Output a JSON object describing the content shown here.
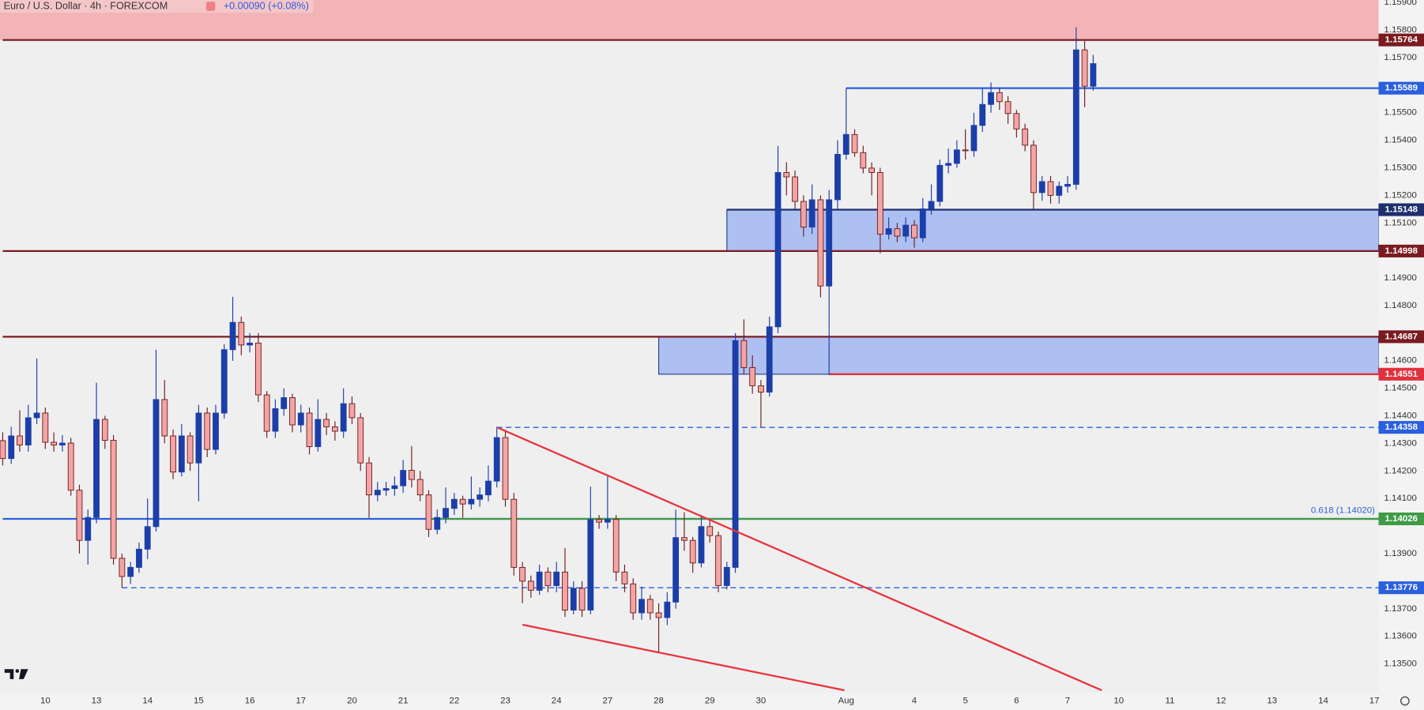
{
  "chart_data": {
    "type": "candlestick",
    "title": "Euro / U.S. Dollar · 4h · FOREXCOM",
    "subtitle": "+0.00090 (+0.08%)",
    "up_color": "#1c3ea8",
    "down_color": "#f3a5a5",
    "down_border": "#6e1c1c",
    "open": [
      1.1431,
      1.14245,
      1.14327,
      1.14294,
      1.14393,
      1.1441,
      1.14304,
      1.14294,
      1.14301,
      1.1413,
      1.13948,
      1.14031,
      1.14387,
      1.14311,
      1.13883,
      1.13817,
      1.1385,
      1.13916,
      1.13998,
      1.14459,
      1.14327,
      1.14196,
      1.14327,
      1.14229,
      1.1441,
      1.14278,
      1.1441,
      1.1464,
      1.14739,
      1.14657,
      1.14664,
      1.14476,
      1.14344,
      1.14426,
      1.14466,
      1.14367,
      1.1441,
      1.14288,
      1.14387,
      1.1436,
      1.14344,
      1.14444,
      1.14393,
      1.14229,
      1.14113,
      1.1413,
      1.14136,
      1.14146,
      1.14202,
      1.14169,
      1.14113,
      1.13988,
      1.14031,
      1.14064,
      1.14097,
      1.1408,
      1.14097,
      1.14113,
      1.14163,
      1.14321,
      1.14097,
      1.1385,
      1.138,
      1.13767,
      1.13833,
      1.13784,
      1.13833,
      1.13695,
      1.13774,
      1.13695,
      1.14024,
      1.14014,
      1.14024,
      1.13833,
      1.1379,
      1.13685,
      1.13734,
      1.13685,
      1.13668,
      1.13724,
      1.13958,
      1.13948,
      1.13866,
      1.13998,
      1.13965,
      1.13784,
      1.1385,
      1.14673,
      1.14575,
      1.14509,
      1.14486,
      1.14723,
      1.15283,
      1.15267,
      1.15178,
      1.15085,
      1.15184,
      1.14871,
      1.15184,
      1.15349,
      1.15421,
      1.15355,
      1.15299,
      1.15283,
      1.15059,
      1.15079,
      1.15052,
      1.15092,
      1.15046,
      1.15151,
      1.15178,
      1.15309,
      1.15316,
      1.15365,
      1.15362,
      1.15454,
      1.1553,
      1.15573,
      1.1554,
      1.15497,
      1.15441,
      1.15382,
      1.1521,
      1.1525,
      1.152,
      1.15233,
      1.1524,
      1.15728,
      1.15596
    ],
    "high": [
      1.1434,
      1.1436,
      1.1442,
      1.1444,
      1.14608,
      1.1443,
      1.1434,
      1.1433,
      1.1432,
      1.1415,
      1.1406,
      1.1452,
      1.144,
      1.1433,
      1.139,
      1.1387,
      1.1394,
      1.141,
      1.1464,
      1.1453,
      1.1435,
      1.1437,
      1.1434,
      1.1444,
      1.1443,
      1.1444,
      1.1466,
      1.14832,
      1.1476,
      1.147,
      1.147,
      1.1449,
      1.1446,
      1.145,
      1.1448,
      1.1444,
      1.1443,
      1.1446,
      1.1441,
      1.1438,
      1.145,
      1.1447,
      1.1441,
      1.1425,
      1.1416,
      1.1416,
      1.1418,
      1.1424,
      1.1429,
      1.142,
      1.1413,
      1.1406,
      1.1414,
      1.1412,
      1.1411,
      1.1418,
      1.1414,
      1.1422,
      1.1436,
      1.1435,
      1.1412,
      1.1387,
      1.1382,
      1.1386,
      1.1385,
      1.1387,
      1.1392,
      1.138,
      1.138,
      1.14143,
      1.1404,
      1.14186,
      1.1404,
      1.1386,
      1.1381,
      1.1378,
      1.1375,
      1.1372,
      1.1376,
      1.1406,
      1.1405,
      1.1396,
      1.1404,
      1.1402,
      1.1398,
      1.1387,
      1.147,
      1.1475,
      1.1462,
      1.1453,
      1.1476,
      1.1538,
      1.1532,
      1.1529,
      1.152,
      1.1524,
      1.152,
      1.1522,
      1.154,
      1.15589,
      1.1544,
      1.1538,
      1.1532,
      1.153,
      1.1512,
      1.151,
      1.1512,
      1.1511,
      1.1519,
      1.1524,
      1.1533,
      1.1537,
      1.154,
      1.1544,
      1.155,
      1.15589,
      1.1561,
      1.1559,
      1.1556,
      1.1551,
      1.1546,
      1.154,
      1.1527,
      1.1527,
      1.1525,
      1.1527,
      1.1581,
      1.1576,
      1.1571
    ],
    "low": [
      1.1422,
      1.14225,
      1.1427,
      1.1427,
      1.1437,
      1.1428,
      1.1427,
      1.1427,
      1.1411,
      1.139,
      1.1386,
      1.1401,
      1.1428,
      1.1386,
      1.13776,
      1.1379,
      1.1383,
      1.1388,
      1.1398,
      1.143,
      1.1417,
      1.1418,
      1.142,
      1.1409,
      1.1425,
      1.1426,
      1.1439,
      1.146,
      1.1462,
      1.1463,
      1.1445,
      1.1432,
      1.1432,
      1.144,
      1.1434,
      1.1434,
      1.1426,
      1.1427,
      1.1433,
      1.1431,
      1.1432,
      1.1437,
      1.142,
      1.1403,
      1.1409,
      1.1411,
      1.1411,
      1.1412,
      1.1414,
      1.1409,
      1.1396,
      1.1397,
      1.1401,
      1.1404,
      1.1403,
      1.1406,
      1.1407,
      1.1409,
      1.1414,
      1.1407,
      1.1382,
      1.1372,
      1.1374,
      1.1375,
      1.1376,
      1.1376,
      1.1367,
      1.1368,
      1.1367,
      1.1368,
      1.1399,
      1.1399,
      1.138,
      1.1376,
      1.1366,
      1.1366,
      1.1366,
      1.1354,
      1.1364,
      1.137,
      1.1391,
      1.1383,
      1.1385,
      1.1394,
      1.1376,
      1.1377,
      1.1383,
      1.1455,
      1.1448,
      1.14358,
      1.1447,
      1.147,
      1.152,
      1.1515,
      1.1505,
      1.1506,
      1.1483,
      1.14548,
      1.1515,
      1.1533,
      1.1534,
      1.1528,
      1.152,
      1.1499,
      1.1504,
      1.1503,
      1.1503,
      1.1501,
      1.1503,
      1.1513,
      1.1516,
      1.1528,
      1.153,
      1.1533,
      1.1534,
      1.1543,
      1.155,
      1.1551,
      1.1546,
      1.1541,
      1.1536,
      1.15148,
      1.1518,
      1.1517,
      1.1517,
      1.1521,
      1.1522,
      1.1552,
      1.1558
    ],
    "close": [
      1.14245,
      1.14327,
      1.14294,
      1.14393,
      1.1441,
      1.14304,
      1.14294,
      1.14301,
      1.1413,
      1.13948,
      1.14031,
      1.14387,
      1.14311,
      1.13883,
      1.13817,
      1.1385,
      1.13916,
      1.13998,
      1.14459,
      1.14327,
      1.14196,
      1.14327,
      1.14229,
      1.1441,
      1.14278,
      1.1441,
      1.1464,
      1.14739,
      1.14657,
      1.14664,
      1.14476,
      1.14344,
      1.14426,
      1.14466,
      1.14367,
      1.1441,
      1.14288,
      1.14387,
      1.1436,
      1.14344,
      1.14444,
      1.14393,
      1.14229,
      1.14113,
      1.1413,
      1.14136,
      1.14146,
      1.14202,
      1.14169,
      1.14113,
      1.13988,
      1.14031,
      1.14064,
      1.14097,
      1.1408,
      1.14097,
      1.14113,
      1.14163,
      1.14321,
      1.14097,
      1.1385,
      1.138,
      1.13767,
      1.13833,
      1.13784,
      1.13833,
      1.13695,
      1.13774,
      1.13695,
      1.14024,
      1.14014,
      1.14024,
      1.13833,
      1.1379,
      1.13685,
      1.13734,
      1.13685,
      1.13668,
      1.13724,
      1.13958,
      1.13948,
      1.13866,
      1.13998,
      1.13965,
      1.13784,
      1.1385,
      1.14673,
      1.14575,
      1.14509,
      1.14486,
      1.14723,
      1.15283,
      1.15267,
      1.15178,
      1.15085,
      1.15184,
      1.14871,
      1.15184,
      1.15349,
      1.15421,
      1.15355,
      1.15299,
      1.15283,
      1.15059,
      1.15079,
      1.15052,
      1.15092,
      1.15046,
      1.15151,
      1.15178,
      1.15309,
      1.15316,
      1.15365,
      1.15362,
      1.15454,
      1.1553,
      1.15573,
      1.1554,
      1.15497,
      1.15441,
      1.15382,
      1.1521,
      1.1525,
      1.152,
      1.15233,
      1.1524,
      1.15728,
      1.15596,
      1.15678
    ],
    "xlim": [
      -0.32,
      161.5
    ],
    "ylim": [
      1.13395,
      1.15909
    ],
    "xticks": [
      {
        "value": 5,
        "label": "10"
      },
      {
        "value": 11,
        "label": "13"
      },
      {
        "value": 17,
        "label": "14"
      },
      {
        "value": 23,
        "label": "15"
      },
      {
        "value": 29,
        "label": "16"
      },
      {
        "value": 35,
        "label": "17"
      },
      {
        "value": 41,
        "label": "20"
      },
      {
        "value": 47,
        "label": "21"
      },
      {
        "value": 53,
        "label": "22"
      },
      {
        "value": 59,
        "label": "23"
      },
      {
        "value": 65,
        "label": "24"
      },
      {
        "value": 71,
        "label": "27"
      },
      {
        "value": 77,
        "label": "28"
      },
      {
        "value": 83,
        "label": "29"
      },
      {
        "value": 89,
        "label": "30"
      },
      {
        "value": 99,
        "label": "Aug"
      },
      {
        "value": 107,
        "label": "4"
      },
      {
        "value": 113,
        "label": "5"
      },
      {
        "value": 119,
        "label": "6"
      },
      {
        "value": 125,
        "label": "7"
      },
      {
        "value": 131,
        "label": "10"
      },
      {
        "value": 137,
        "label": "11"
      },
      {
        "value": 143,
        "label": "12"
      },
      {
        "value": 149,
        "label": "13"
      },
      {
        "value": 155,
        "label": "14"
      },
      {
        "value": 161,
        "label": "17"
      }
    ],
    "yticks": [
      {
        "value": 1.159,
        "label": "1.15900"
      },
      {
        "value": 1.158,
        "label": "1.15800"
      },
      {
        "value": 1.157,
        "label": "1.15700"
      },
      {
        "value": 1.155,
        "label": "1.15500"
      },
      {
        "value": 1.154,
        "label": "1.15400"
      },
      {
        "value": 1.153,
        "label": "1.15300"
      },
      {
        "value": 1.152,
        "label": "1.15200"
      },
      {
        "value": 1.151,
        "label": "1.15100"
      },
      {
        "value": 1.149,
        "label": "1.14900"
      },
      {
        "value": 1.148,
        "label": "1.14800"
      },
      {
        "value": 1.146,
        "label": "1.14600"
      },
      {
        "value": 1.145,
        "label": "1.14500"
      },
      {
        "value": 1.144,
        "label": "1.14400"
      },
      {
        "value": 1.143,
        "label": "1.14300"
      },
      {
        "value": 1.142,
        "label": "1.14200"
      },
      {
        "value": 1.141,
        "label": "1.14100"
      },
      {
        "value": 1.139,
        "label": "1.13900"
      },
      {
        "value": 1.137,
        "label": "1.13700"
      },
      {
        "value": 1.136,
        "label": "1.13600"
      },
      {
        "value": 1.135,
        "label": "1.13500"
      }
    ],
    "grid": false,
    "upper_zone": {
      "bottom": 1.15764,
      "color": "#f2b4b7"
    },
    "zones": [
      {
        "from": 85,
        "top": 1.15148,
        "bottom": 1.14998,
        "color": "#aec0f2"
      },
      {
        "from": 77,
        "top": 1.14687,
        "bottom": 1.14551,
        "color": "#aec0f2"
      }
    ],
    "levels": [
      {
        "value": 1.15764,
        "from": 0,
        "color": "#7a1b20",
        "dashed": false,
        "badge": true
      },
      {
        "value": 1.15589,
        "from": 99,
        "color": "#2a5fdd",
        "dashed": false,
        "badge": true
      },
      {
        "value": 1.15148,
        "from": 85,
        "color": "#1e2f6e",
        "dashed": false,
        "badge": true
      },
      {
        "value": 1.14998,
        "from": 0,
        "color": "#7a1b20",
        "dashed": false,
        "badge": true
      },
      {
        "value": 1.14687,
        "from": 0,
        "color": "#7a1b20",
        "dashed": false,
        "badge": true
      },
      {
        "value": 1.14551,
        "from": 97,
        "color": "#e0323c",
        "dashed": false,
        "badge": true
      },
      {
        "value": 1.14358,
        "from": 58,
        "color": "#2a5fdd",
        "dashed": true,
        "badge": true
      },
      {
        "value": 1.14026,
        "from": 0,
        "color": "#2a5fdd",
        "dashed": false,
        "badge": false
      },
      {
        "value": 1.14026,
        "from": 50,
        "color": "#3f9b45",
        "dashed": false,
        "badge": true
      },
      {
        "value": 1.13776,
        "from": 14,
        "color": "#2a5fdd",
        "dashed": true,
        "badge": true
      }
    ],
    "annotation": "0.618 (1.14020)",
    "trendlines": [
      {
        "x": [
          58.1,
          129
        ],
        "y": [
          1.14357,
          1.13404
        ],
        "color": "#e8343f"
      },
      {
        "x": [
          61,
          98.8
        ],
        "y": [
          1.13642,
          1.13404
        ],
        "color": "#e8343f"
      }
    ]
  }
}
